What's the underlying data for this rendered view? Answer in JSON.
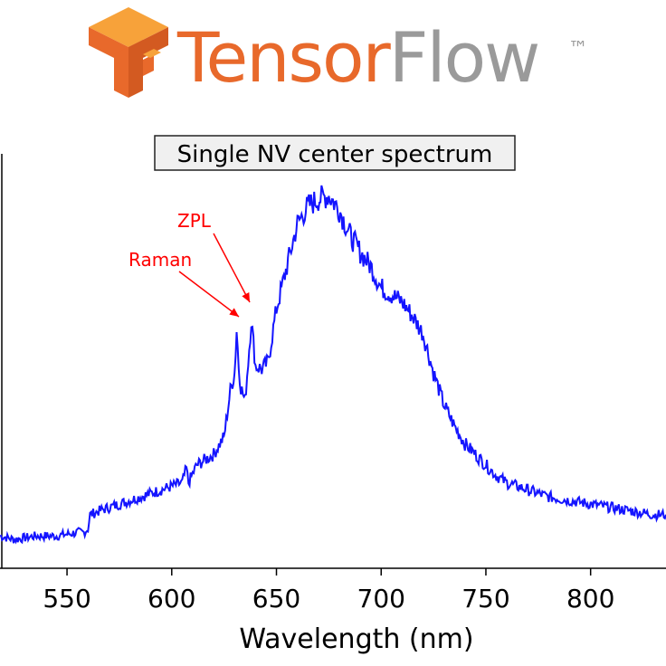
{
  "logo": {
    "word_part1": "Tensor",
    "word_part2": "Flow",
    "trademark": "™",
    "colors": {
      "tensor": "#e8692b",
      "tensor_shade": "#f7a23a",
      "flow": "#9a9a9a"
    }
  },
  "chart_data": {
    "type": "line",
    "title": "Single NV center spectrum",
    "xlabel": "Wavelength (nm)",
    "ylabel": "",
    "xlim": [
      518,
      836
    ],
    "ylim": [
      0,
      1
    ],
    "xticks": [
      550,
      600,
      650,
      700,
      750,
      800
    ],
    "x_tick_labels": [
      "550",
      "600",
      "650",
      "700",
      "750",
      "800"
    ],
    "grid": false,
    "legend": "none",
    "series_color": "#1414ff",
    "annotation_color": "#ff0000",
    "annotations": [
      {
        "text": "ZPL",
        "x": 638,
        "y": 0.68
      },
      {
        "text": "Raman",
        "x": 631,
        "y": 0.64
      }
    ],
    "series": [
      {
        "x": [
          518,
          525,
          535,
          545,
          555,
          558,
          560,
          561,
          565,
          575,
          585,
          595,
          605,
          607,
          608,
          612,
          620,
          625,
          628,
          630,
          631,
          632,
          633,
          635,
          637,
          638,
          640,
          643,
          646,
          650,
          655,
          660,
          665,
          670,
          675,
          680,
          685,
          690,
          695,
          700,
          705,
          710,
          715,
          720,
          725,
          730,
          735,
          740,
          745,
          750,
          755,
          760,
          770,
          780,
          790,
          800,
          810,
          820,
          830,
          836
        ],
        "values": [
          0.04,
          0.03,
          0.04,
          0.04,
          0.05,
          0.05,
          0.06,
          0.1,
          0.11,
          0.13,
          0.15,
          0.17,
          0.19,
          0.23,
          0.19,
          0.24,
          0.27,
          0.32,
          0.45,
          0.5,
          0.62,
          0.52,
          0.46,
          0.42,
          0.57,
          0.65,
          0.52,
          0.51,
          0.53,
          0.68,
          0.8,
          0.92,
          0.97,
          0.99,
          1.0,
          0.96,
          0.89,
          0.84,
          0.8,
          0.74,
          0.72,
          0.7,
          0.66,
          0.61,
          0.5,
          0.41,
          0.35,
          0.3,
          0.27,
          0.24,
          0.21,
          0.19,
          0.17,
          0.15,
          0.14,
          0.13,
          0.12,
          0.11,
          0.1,
          0.1
        ]
      }
    ]
  }
}
